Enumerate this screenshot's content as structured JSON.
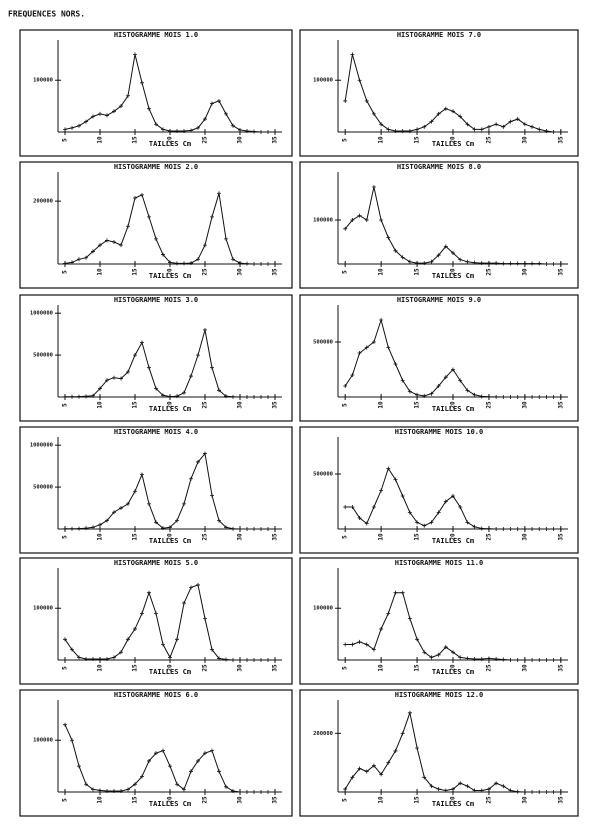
{
  "header": "FREQUENCES NORS.",
  "chart_data": [
    {
      "type": "line",
      "title": "HISTOGRAMME MOIS 1.0",
      "x_label": "TAILLES Cm",
      "x": [
        5,
        6,
        7,
        8,
        9,
        10,
        11,
        12,
        13,
        14,
        15,
        16,
        17,
        18,
        19,
        20,
        21,
        22,
        23,
        24,
        25,
        26,
        27,
        28,
        29,
        30,
        31,
        32,
        33,
        34,
        35
      ],
      "xlim": [
        4,
        36
      ],
      "xticks": [
        5,
        10,
        15,
        20,
        25,
        30,
        35
      ],
      "ylim": [
        0,
        170000
      ],
      "yticks": [
        100000
      ],
      "series": [
        {
          "color": "#111111",
          "values": [
            5000,
            8000,
            12000,
            20000,
            30000,
            35000,
            32000,
            40000,
            50000,
            70000,
            150000,
            95000,
            45000,
            15000,
            5000,
            2000,
            2000,
            2000,
            3000,
            8000,
            25000,
            55000,
            60000,
            35000,
            12000,
            4000,
            2000,
            1000,
            0,
            0,
            0
          ]
        }
      ]
    },
    {
      "type": "line",
      "title": "HISTOGRAMME MOIS 2.0",
      "x_label": "TAILLES Cm",
      "x": [
        5,
        6,
        7,
        8,
        9,
        10,
        11,
        12,
        13,
        14,
        15,
        16,
        17,
        18,
        19,
        20,
        21,
        22,
        23,
        24,
        25,
        26,
        27,
        28,
        29,
        30,
        31,
        32,
        33,
        34,
        35
      ],
      "xlim": [
        4,
        36
      ],
      "xticks": [
        5,
        10,
        15,
        20,
        25,
        30,
        35
      ],
      "ylim": [
        0,
        280000
      ],
      "yticks": [
        200000
      ],
      "series": [
        {
          "color": "#111111",
          "values": [
            2000,
            5000,
            15000,
            20000,
            40000,
            60000,
            75000,
            70000,
            60000,
            120000,
            210000,
            220000,
            150000,
            80000,
            30000,
            5000,
            2000,
            2000,
            3000,
            15000,
            60000,
            150000,
            225000,
            80000,
            15000,
            3000,
            1000,
            0,
            0,
            0,
            0
          ]
        }
      ]
    },
    {
      "type": "line",
      "title": "HISTOGRAMME MOIS 3.0",
      "x_label": "TAILLES Cm",
      "x": [
        5,
        6,
        7,
        8,
        9,
        10,
        11,
        12,
        13,
        14,
        15,
        16,
        17,
        18,
        19,
        20,
        21,
        22,
        23,
        24,
        25,
        26,
        27,
        28,
        29,
        30,
        31,
        32,
        33,
        34,
        35
      ],
      "xlim": [
        4,
        36
      ],
      "xticks": [
        5,
        10,
        15,
        20,
        25,
        30,
        35
      ],
      "ylim": [
        0,
        1050000
      ],
      "yticks": [
        500000,
        1000000
      ],
      "series": [
        {
          "color": "#111111",
          "values": [
            2000,
            3000,
            5000,
            8000,
            15000,
            100000,
            200000,
            230000,
            220000,
            300000,
            500000,
            650000,
            350000,
            100000,
            20000,
            5000,
            10000,
            50000,
            250000,
            500000,
            800000,
            350000,
            80000,
            10000,
            2000,
            0,
            0,
            0,
            0,
            0,
            0
          ]
        }
      ]
    },
    {
      "type": "line",
      "title": "HISTOGRAMME MOIS 4.0",
      "x_label": "TAILLES Cm",
      "x": [
        5,
        6,
        7,
        8,
        9,
        10,
        11,
        12,
        13,
        14,
        15,
        16,
        17,
        18,
        19,
        20,
        21,
        22,
        23,
        24,
        25,
        26,
        27,
        28,
        29,
        30,
        31,
        32,
        33,
        34,
        35
      ],
      "xlim": [
        4,
        36
      ],
      "xticks": [
        5,
        10,
        15,
        20,
        25,
        30,
        35
      ],
      "ylim": [
        0,
        1050000
      ],
      "yticks": [
        500000,
        1000000
      ],
      "series": [
        {
          "color": "#111111",
          "values": [
            2000,
            3000,
            5000,
            10000,
            20000,
            50000,
            100000,
            200000,
            250000,
            300000,
            450000,
            650000,
            300000,
            80000,
            10000,
            20000,
            100000,
            300000,
            600000,
            800000,
            900000,
            400000,
            100000,
            20000,
            2000,
            0,
            0,
            0,
            0,
            0,
            0
          ]
        }
      ]
    },
    {
      "type": "line",
      "title": "HISTOGRAMME MOIS 5.0",
      "x_label": "TAILLES Cm",
      "x": [
        5,
        6,
        7,
        8,
        9,
        10,
        11,
        12,
        13,
        14,
        15,
        16,
        17,
        18,
        19,
        20,
        21,
        22,
        23,
        24,
        25,
        26,
        27,
        28,
        29,
        30,
        31,
        32,
        33,
        34,
        35
      ],
      "xlim": [
        4,
        36
      ],
      "xticks": [
        5,
        10,
        15,
        20,
        25,
        30,
        35
      ],
      "ylim": [
        0,
        170000
      ],
      "yticks": [
        100000
      ],
      "series": [
        {
          "color": "#111111",
          "values": [
            40000,
            20000,
            5000,
            2000,
            2000,
            2000,
            2000,
            5000,
            15000,
            40000,
            60000,
            90000,
            130000,
            90000,
            30000,
            5000,
            40000,
            110000,
            140000,
            145000,
            80000,
            20000,
            3000,
            1000,
            0,
            0,
            0,
            0,
            0,
            0,
            0
          ]
        }
      ]
    },
    {
      "type": "line",
      "title": "HISTOGRAMME MOIS 6.0",
      "x_label": "TAILLES Cm",
      "x": [
        5,
        6,
        7,
        8,
        9,
        10,
        11,
        12,
        13,
        14,
        15,
        16,
        17,
        18,
        19,
        20,
        21,
        22,
        23,
        24,
        25,
        26,
        27,
        28,
        29,
        30,
        31,
        32,
        33,
        34,
        35
      ],
      "xlim": [
        4,
        36
      ],
      "xticks": [
        5,
        10,
        15,
        20,
        25,
        30,
        35
      ],
      "ylim": [
        0,
        170000
      ],
      "yticks": [
        100000
      ],
      "series": [
        {
          "color": "#111111",
          "values": [
            130000,
            100000,
            50000,
            15000,
            5000,
            3000,
            2000,
            2000,
            2000,
            5000,
            15000,
            30000,
            60000,
            75000,
            80000,
            50000,
            15000,
            5000,
            40000,
            60000,
            75000,
            80000,
            40000,
            10000,
            2000,
            0,
            0,
            0,
            0,
            0,
            0
          ]
        }
      ]
    },
    {
      "type": "line",
      "title": "HISTOGRAMME MOIS 7.0",
      "x_label": "TAILLES Cm",
      "x": [
        5,
        6,
        7,
        8,
        9,
        10,
        11,
        12,
        13,
        14,
        15,
        16,
        17,
        18,
        19,
        20,
        21,
        22,
        23,
        24,
        25,
        26,
        27,
        28,
        29,
        30,
        31,
        32,
        33,
        34,
        35
      ],
      "xlim": [
        4,
        36
      ],
      "xticks": [
        5,
        10,
        15,
        20,
        25,
        30,
        35
      ],
      "ylim": [
        0,
        170000
      ],
      "yticks": [
        100000
      ],
      "series": [
        {
          "color": "#111111",
          "values": [
            60000,
            150000,
            100000,
            60000,
            35000,
            15000,
            5000,
            2000,
            2000,
            2000,
            5000,
            10000,
            20000,
            35000,
            45000,
            40000,
            30000,
            15000,
            5000,
            5000,
            10000,
            15000,
            10000,
            20000,
            25000,
            15000,
            10000,
            5000,
            2000,
            0,
            0
          ]
        }
      ]
    },
    {
      "type": "line",
      "title": "HISTOGRAMME MOIS 8.0",
      "x_label": "TAILLES Cm",
      "x": [
        5,
        6,
        7,
        8,
        9,
        10,
        11,
        12,
        13,
        14,
        15,
        16,
        17,
        18,
        19,
        20,
        21,
        22,
        23,
        24,
        25,
        26,
        27,
        28,
        29,
        30,
        31,
        32,
        33,
        34,
        35
      ],
      "xlim": [
        4,
        36
      ],
      "xticks": [
        5,
        10,
        15,
        20,
        25,
        30,
        35
      ],
      "ylim": [
        0,
        200000
      ],
      "yticks": [
        100000
      ],
      "series": [
        {
          "color": "#111111",
          "values": [
            80000,
            100000,
            110000,
            100000,
            175000,
            100000,
            60000,
            30000,
            15000,
            5000,
            2000,
            2000,
            5000,
            20000,
            40000,
            25000,
            10000,
            5000,
            3000,
            2000,
            2000,
            2000,
            1000,
            1000,
            1000,
            1000,
            1000,
            1000,
            0,
            0,
            0
          ]
        }
      ]
    },
    {
      "type": "line",
      "title": "HISTOGRAMME MOIS 9.0",
      "x_label": "TAILLES Cm",
      "x": [
        5,
        6,
        7,
        8,
        9,
        10,
        11,
        12,
        13,
        14,
        15,
        16,
        17,
        18,
        19,
        20,
        21,
        22,
        23,
        24,
        25,
        26,
        27,
        28,
        29,
        30,
        31,
        32,
        33,
        34,
        35
      ],
      "xlim": [
        4,
        36
      ],
      "xticks": [
        5,
        10,
        15,
        20,
        25,
        30,
        35
      ],
      "ylim": [
        0,
        800000
      ],
      "yticks": [
        500000
      ],
      "series": [
        {
          "color": "#111111",
          "values": [
            100000,
            200000,
            400000,
            450000,
            500000,
            700000,
            450000,
            300000,
            150000,
            50000,
            20000,
            10000,
            30000,
            100000,
            180000,
            250000,
            150000,
            60000,
            20000,
            5000,
            2000,
            1000,
            0,
            0,
            0,
            0,
            0,
            0,
            0,
            0,
            0
          ]
        }
      ]
    },
    {
      "type": "line",
      "title": "HISTOGRAMME MOIS 10.0",
      "x_label": "TAILLES Cm",
      "x": [
        5,
        6,
        7,
        8,
        9,
        10,
        11,
        12,
        13,
        14,
        15,
        16,
        17,
        18,
        19,
        20,
        21,
        22,
        23,
        24,
        25,
        26,
        27,
        28,
        29,
        30,
        31,
        32,
        33,
        34,
        35
      ],
      "xlim": [
        4,
        36
      ],
      "xticks": [
        5,
        10,
        15,
        20,
        25,
        30,
        35
      ],
      "ylim": [
        0,
        800000
      ],
      "yticks": [
        500000
      ],
      "series": [
        {
          "color": "#111111",
          "values": [
            200000,
            200000,
            100000,
            50000,
            200000,
            350000,
            550000,
            450000,
            300000,
            150000,
            60000,
            30000,
            60000,
            150000,
            250000,
            300000,
            200000,
            60000,
            20000,
            5000,
            2000,
            0,
            0,
            0,
            0,
            0,
            0,
            0,
            0,
            0,
            0
          ]
        }
      ]
    },
    {
      "type": "line",
      "title": "HISTOGRAMME MOIS 11.0",
      "x_label": "TAILLES Cm",
      "x": [
        5,
        6,
        7,
        8,
        9,
        10,
        11,
        12,
        13,
        14,
        15,
        16,
        17,
        18,
        19,
        20,
        21,
        22,
        23,
        24,
        25,
        26,
        27,
        28,
        29,
        30,
        31,
        32,
        33,
        34,
        35
      ],
      "xlim": [
        4,
        36
      ],
      "xticks": [
        5,
        10,
        15,
        20,
        25,
        30,
        35
      ],
      "ylim": [
        0,
        170000
      ],
      "yticks": [
        100000
      ],
      "series": [
        {
          "color": "#111111",
          "values": [
            30000,
            30000,
            35000,
            30000,
            20000,
            60000,
            90000,
            130000,
            130000,
            80000,
            40000,
            15000,
            5000,
            10000,
            25000,
            15000,
            5000,
            3000,
            2000,
            2000,
            3000,
            2000,
            1000,
            0,
            0,
            0,
            0,
            0,
            0,
            0,
            0
          ]
        }
      ]
    },
    {
      "type": "line",
      "title": "HISTOGRAMME MOIS 12.0",
      "x_label": "TAILLES Cm",
      "x": [
        5,
        6,
        7,
        8,
        9,
        10,
        11,
        12,
        13,
        14,
        15,
        16,
        17,
        18,
        19,
        20,
        21,
        22,
        23,
        24,
        25,
        26,
        27,
        28,
        29,
        30,
        31,
        32,
        33,
        34,
        35
      ],
      "xlim": [
        4,
        36
      ],
      "xticks": [
        5,
        10,
        15,
        20,
        25,
        30,
        35
      ],
      "ylim": [
        0,
        300000
      ],
      "yticks": [
        200000
      ],
      "series": [
        {
          "color": "#111111",
          "values": [
            10000,
            50000,
            80000,
            70000,
            90000,
            60000,
            100000,
            140000,
            200000,
            270000,
            150000,
            50000,
            20000,
            10000,
            5000,
            10000,
            30000,
            20000,
            5000,
            5000,
            10000,
            30000,
            20000,
            5000,
            1000,
            0,
            0,
            0,
            0,
            0,
            0
          ]
        }
      ]
    }
  ]
}
